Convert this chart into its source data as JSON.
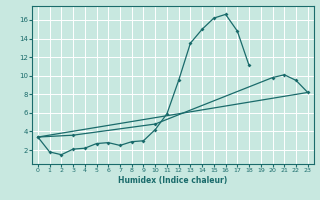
{
  "title": "",
  "xlabel": "Humidex (Indice chaleur)",
  "ylabel": "",
  "xlim": [
    -0.5,
    23.5
  ],
  "ylim": [
    0.5,
    17.5
  ],
  "xticks": [
    0,
    1,
    2,
    3,
    4,
    5,
    6,
    7,
    8,
    9,
    10,
    11,
    12,
    13,
    14,
    15,
    16,
    17,
    18,
    19,
    20,
    21,
    22,
    23
  ],
  "yticks": [
    2,
    4,
    6,
    8,
    10,
    12,
    14,
    16
  ],
  "bg_color": "#c8e8e0",
  "grid_color": "#ffffff",
  "line_color": "#1a6b6b",
  "line1_x": [
    0,
    1,
    2,
    3,
    4,
    5,
    6,
    7,
    8,
    9,
    10,
    11,
    12,
    13,
    14,
    15,
    16,
    17,
    18
  ],
  "line1_y": [
    3.4,
    1.8,
    1.5,
    2.1,
    2.2,
    2.7,
    2.8,
    2.5,
    2.9,
    3.0,
    4.2,
    5.9,
    9.5,
    13.5,
    15.0,
    16.2,
    16.6,
    14.8,
    11.1
  ],
  "line2_x": [
    0,
    3,
    10,
    20,
    21,
    22,
    23
  ],
  "line2_y": [
    3.4,
    3.6,
    4.8,
    9.8,
    10.1,
    9.5,
    8.2
  ],
  "line3_x": [
    0,
    23
  ],
  "line3_y": [
    3.4,
    8.2
  ]
}
